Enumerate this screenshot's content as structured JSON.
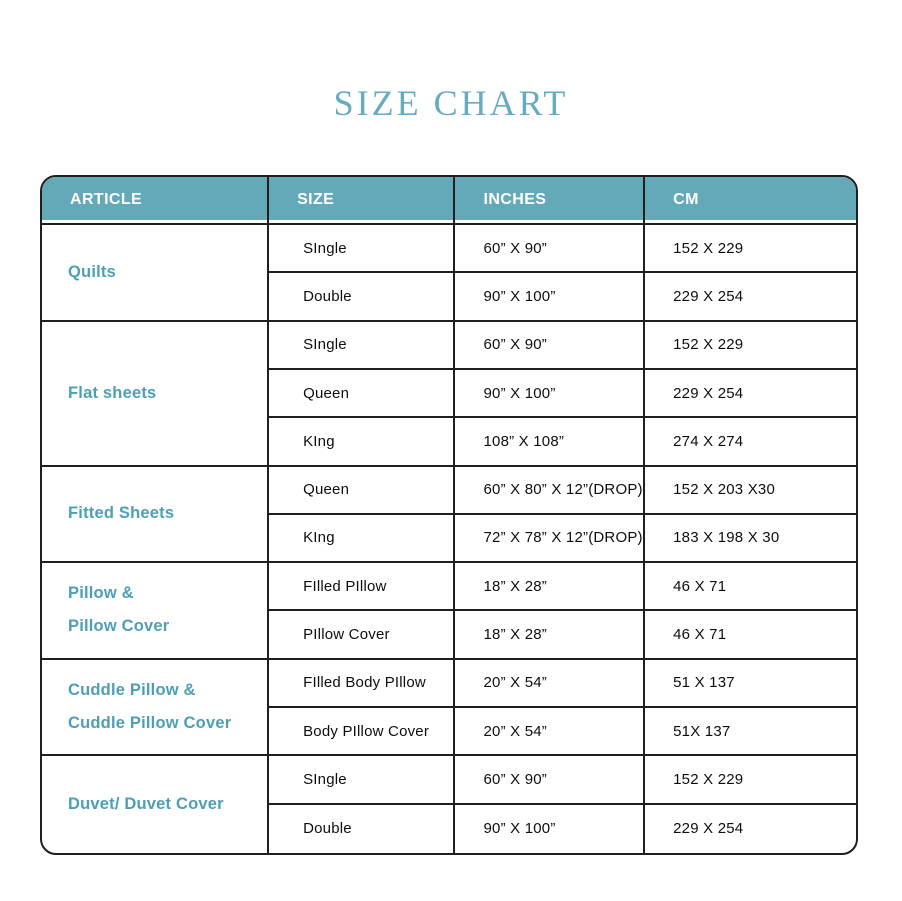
{
  "page": {
    "title": "SIZE CHART"
  },
  "colors": {
    "teal-header": "#63A9B8",
    "teal-article": "#4D9FB6",
    "teal-title": "#66ABC0",
    "line": "#1F1F1F"
  },
  "table": {
    "headers": {
      "article": "ARTICLE",
      "size": "SIZE",
      "inches": "INCHES",
      "cm": "CM"
    },
    "sections": [
      {
        "article": "Quilts",
        "rows": [
          {
            "size": "SIngle",
            "inches": "60” X 90”",
            "cm": "152 X 229"
          },
          {
            "size": "Double",
            "inches": "90” X 100”",
            "cm": "229 X 254"
          }
        ]
      },
      {
        "article": "Flat sheets",
        "rows": [
          {
            "size": "SIngle",
            "inches": "60” X 90”",
            "cm": "152 X 229"
          },
          {
            "size": "Queen",
            "inches": "90” X 100”",
            "cm": "229 X 254"
          },
          {
            "size": "KIng",
            "inches": "108” X 108”",
            "cm": "274 X 274"
          }
        ]
      },
      {
        "article": "Fitted Sheets",
        "rows": [
          {
            "size": "Queen",
            "inches": "60” X 80” X 12”(DROP)",
            "cm": "152 X 203 X30"
          },
          {
            "size": "KIng",
            "inches": "72” X 78” X 12”(DROP)",
            "cm": "183 X 198 X 30"
          }
        ]
      },
      {
        "article": "Pillow &\nPillow Cover",
        "rows": [
          {
            "size": "FIlled PIllow",
            "inches": "18” X 28”",
            "cm": "46 X 71"
          },
          {
            "size": "PIllow Cover",
            "inches": "18” X 28”",
            "cm": "46 X 71"
          }
        ]
      },
      {
        "article": "Cuddle Pillow &\nCuddle Pillow Cover",
        "rows": [
          {
            "size": "FIlled Body PIllow",
            "inches": "20” X 54”",
            "cm": "51 X 137"
          },
          {
            "size": "Body PIllow Cover",
            "inches": "20” X 54”",
            "cm": "51X 137"
          }
        ]
      },
      {
        "article": "Duvet/ Duvet Cover",
        "rows": [
          {
            "size": "SIngle",
            "inches": "60” X 90”",
            "cm": "152 X 229"
          },
          {
            "size": "Double",
            "inches": "90” X 100”",
            "cm": "229 X 254"
          }
        ]
      }
    ]
  }
}
